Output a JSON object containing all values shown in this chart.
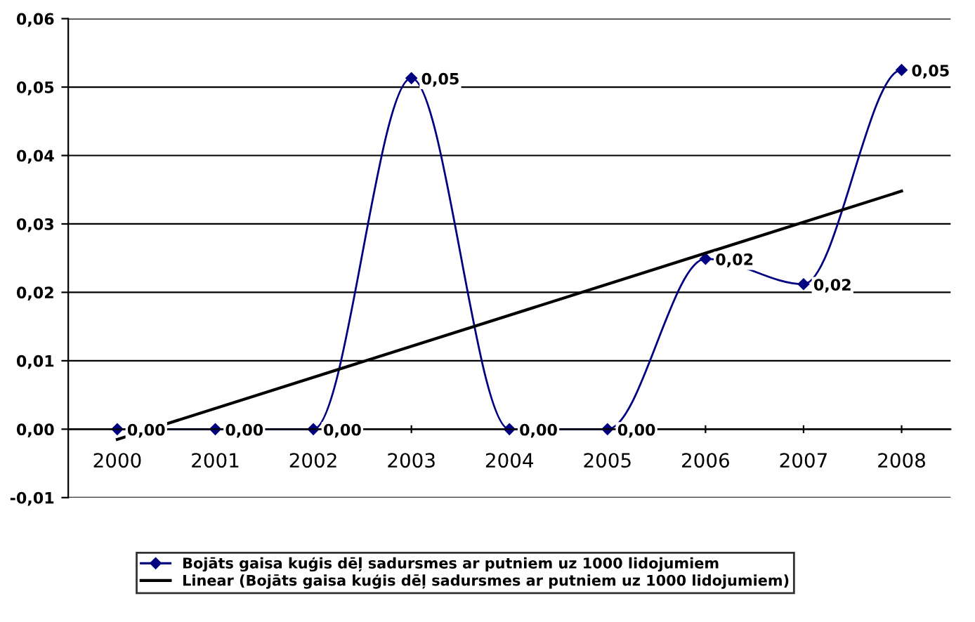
{
  "chart_data": {
    "type": "line",
    "categories": [
      "2000",
      "2001",
      "2002",
      "2003",
      "2004",
      "2005",
      "2006",
      "2007",
      "2008"
    ],
    "series": [
      {
        "name": "Bojāts gaisa kuģis dēļ sadursmes ar putniem uz 1000 lidojumiem",
        "color": "#000080",
        "values": [
          0,
          0,
          0,
          0.0513,
          0,
          0,
          0.0249,
          0.0212,
          0.0525
        ],
        "value_labels": [
          "0,00",
          "0,00",
          "0,00",
          "0,05",
          "0,00",
          "0,00",
          "0,02",
          "0,02",
          "0,05"
        ],
        "marker": "diamond"
      },
      {
        "name": "Linear (Bojāts gaisa kuģis dēļ sadursmes ar putniem uz 1000 lidojumiem)",
        "color": "#000000",
        "values": [
          -0.0015,
          null,
          null,
          null,
          null,
          null,
          null,
          null,
          0.0348
        ],
        "marker": "none"
      }
    ],
    "ylim": [
      -0.01,
      0.06
    ],
    "yticks": [
      {
        "value": -0.01,
        "label": "-0,01"
      },
      {
        "value": 0,
        "label": "0,00"
      },
      {
        "value": 0.01,
        "label": "0,01"
      },
      {
        "value": 0.02,
        "label": "0,02"
      },
      {
        "value": 0.03,
        "label": "0,03"
      },
      {
        "value": 0.04,
        "label": "0,04"
      },
      {
        "value": 0.05,
        "label": "0,05"
      },
      {
        "value": 0.06,
        "label": "0,06"
      }
    ],
    "grid": "y",
    "legend": "bottom",
    "line_style": "solid"
  }
}
